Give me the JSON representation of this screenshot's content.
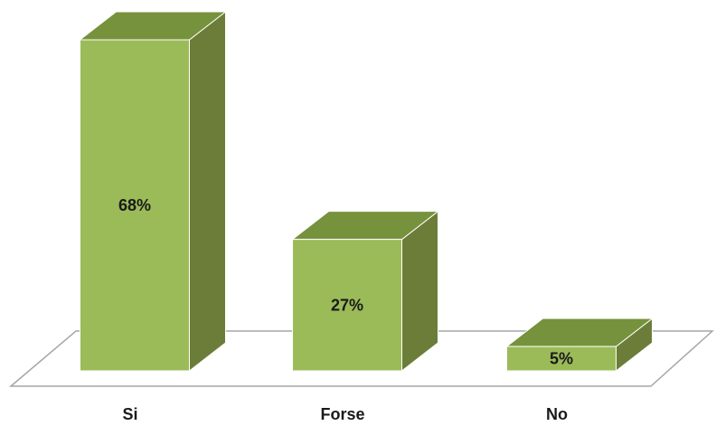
{
  "chart_data": {
    "type": "bar",
    "style": "3d",
    "categories": [
      "Si",
      "Forse",
      "No"
    ],
    "values": [
      68,
      27,
      5
    ],
    "value_labels": [
      "68%",
      "27%",
      "5%"
    ],
    "unit": "%",
    "ylim": [
      0,
      70
    ],
    "grid": false,
    "legend": "none",
    "colors": {
      "front": "#9bbb59",
      "side": "#6b7d38",
      "top": "#76923c",
      "stroke": "#ffffff",
      "floor_line": "#a6a6a6"
    }
  }
}
